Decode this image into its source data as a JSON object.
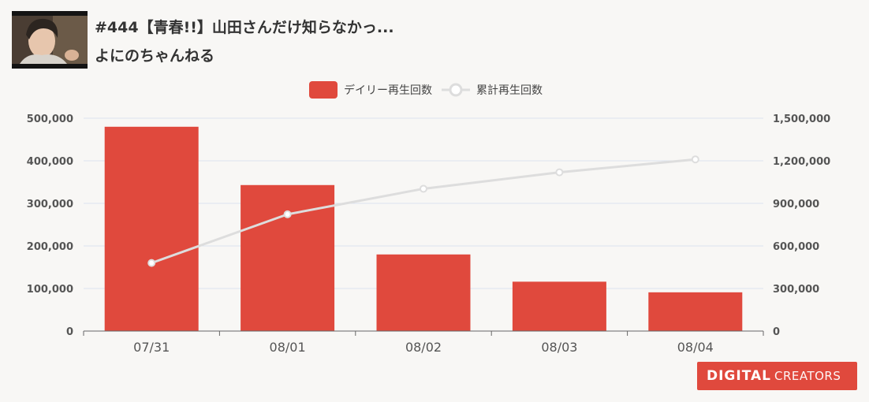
{
  "header": {
    "video_title": "#444【青春!!】山田さんだけ知らなかっ...",
    "channel_name": "よにのちゃんねる",
    "thumbnail_icon": "video-thumbnail"
  },
  "legend": {
    "daily_label": "デイリー再生回数",
    "cumulative_label": "累計再生回数"
  },
  "logo": {
    "strong": "DIGITAL",
    "light": "CREATORS"
  },
  "colors": {
    "bar": "#e0493d",
    "line": "#dddddd",
    "grid": "#dde3f0",
    "axis": "#666666",
    "brand": "#e0493d"
  },
  "chart_data": {
    "type": "bar",
    "categories": [
      "07/31",
      "08/01",
      "08/02",
      "08/03",
      "08/04"
    ],
    "series": [
      {
        "name": "デイリー再生回数",
        "type": "bar",
        "axis": "left",
        "values": [
          480000,
          343000,
          180000,
          116000,
          91000
        ]
      },
      {
        "name": "累計再生回数",
        "type": "line",
        "axis": "right",
        "values": [
          480000,
          823000,
          1003000,
          1119000,
          1210000
        ]
      }
    ],
    "y_left": {
      "min": 0,
      "max": 500000,
      "ticks": [
        0,
        100000,
        200000,
        300000,
        400000,
        500000
      ],
      "tick_labels": [
        "0",
        "100,000",
        "200,000",
        "300,000",
        "400,000",
        "500,000"
      ]
    },
    "y_right": {
      "min": 0,
      "max": 1500000,
      "ticks": [
        0,
        300000,
        600000,
        900000,
        1200000,
        1500000
      ],
      "tick_labels": [
        "0",
        "300,000",
        "600,000",
        "900,000",
        "1,200,000",
        "1,500,000"
      ]
    },
    "grid": true,
    "legend_position": "top-center"
  }
}
